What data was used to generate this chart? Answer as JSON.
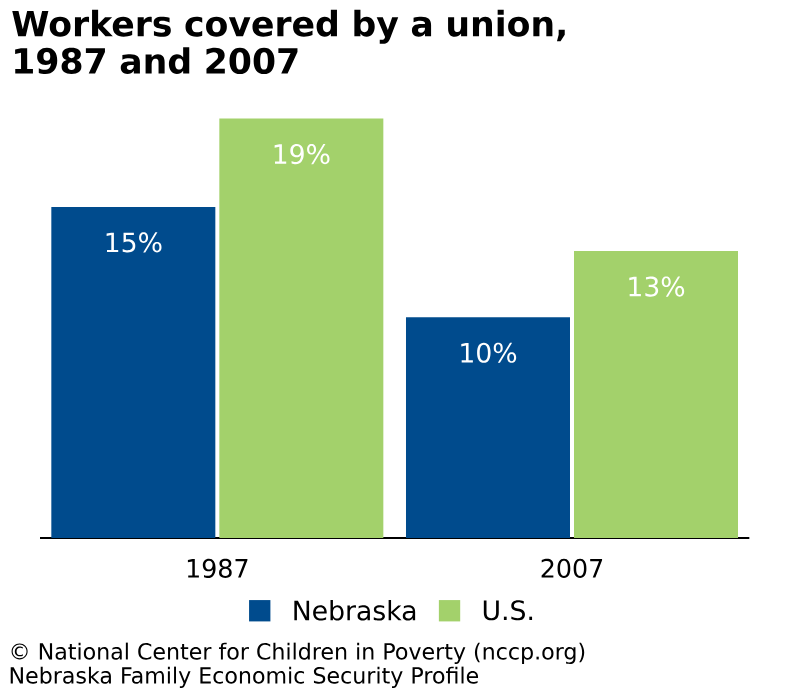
{
  "chart_data": {
    "type": "bar",
    "title": "Workers covered by a union, 1987 and 2007",
    "categories": [
      "1987",
      "2007"
    ],
    "series": [
      {
        "name": "Nebraska",
        "color": "#004b8d",
        "values": [
          15,
          10
        ],
        "value_labels": [
          "15%",
          "10%"
        ]
      },
      {
        "name": "U.S.",
        "color": "#a3d16b",
        "values": [
          19,
          13
        ],
        "value_labels": [
          "19%",
          "13%"
        ]
      }
    ],
    "tick_labels": "x",
    "legend": "bottom",
    "annotations": [
      "© National Center for Children in Poverty (nccp.org)",
      "Nebraska Family Economic Security Profile"
    ]
  }
}
